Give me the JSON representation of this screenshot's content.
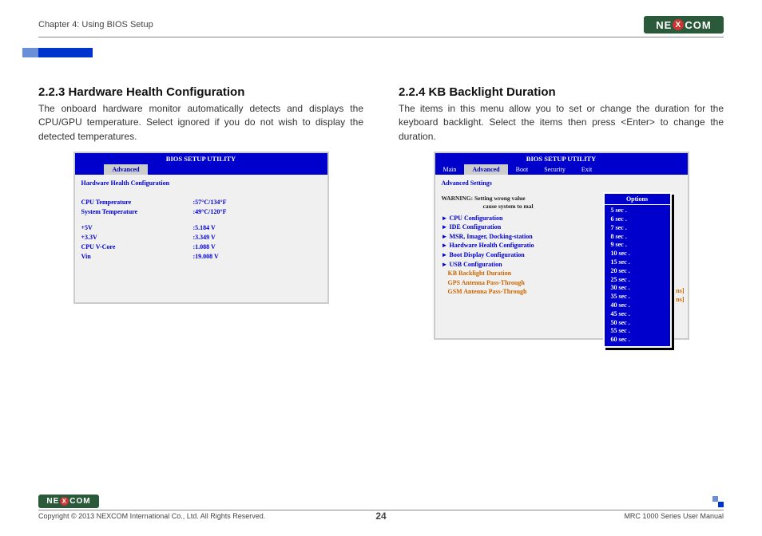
{
  "header": {
    "chapter": "Chapter 4: Using BIOS Setup"
  },
  "logo_text_parts": {
    "ne": "NE",
    "x": "X",
    "com": "COM"
  },
  "left": {
    "heading": "2.2.3 Hardware Health Configuration",
    "desc": "The onboard hardware monitor automatically detects and displays the CPU/GPU temperature. Select ignored if you do not wish to display the detected temperatures.",
    "bios": {
      "title": "BIOS SETUP UTILITY",
      "active_tab": "Advanced",
      "section_title": "Hardware Health Configuration",
      "rows1": [
        {
          "label": "CPU Temperature",
          "val": ":57°C/134°F"
        },
        {
          "label": "System Temperature",
          "val": ":49°C/120°F"
        }
      ],
      "rows2": [
        {
          "label": "+5V",
          "val": ":5.184 V"
        },
        {
          "label": "+3.3V",
          "val": ":3.349 V"
        },
        {
          "label": "CPU V-Core",
          "val": ":1.088 V"
        },
        {
          "label": "Vin",
          "val": ":19.008 V"
        }
      ]
    }
  },
  "right": {
    "heading": "2.2.4 KB Backlight Duration",
    "desc": "The items in this menu allow you to set or change the duration for the keyboard backlight. Select the items then press <Enter> to change the duration.",
    "bios": {
      "title": "BIOS SETUP UTILITY",
      "tabs": [
        "Main",
        "Advanced",
        "Boot",
        "Security",
        "Exit"
      ],
      "section_title": "Advanced Settings",
      "warn_l1": "WARNING:  Setting wrong value",
      "warn_l2": "cause system to mal",
      "items": [
        {
          "text": "CPU Configuration",
          "arrow": true
        },
        {
          "text": "IDE Configuration",
          "arrow": true
        },
        {
          "text": "MSR, Imager, Docking-station",
          "arrow": true
        },
        {
          "text": "Hardware Health Configuratio",
          "arrow": true
        },
        {
          "text": "Boot Display Configuration",
          "arrow": true
        },
        {
          "text": "USB Configuration",
          "arrow": true
        }
      ],
      "selected": "KB Backlight Duration",
      "extra": [
        "GPS Antenna Pass-Through",
        "GSM Antenna Pass-Through"
      ],
      "options_title": "Options",
      "options": [
        "5   sec .",
        "6   sec .",
        "7   sec .",
        "8   sec .",
        "9   sec .",
        "10 sec .",
        "15 sec .",
        "20 sec .",
        "25 sec .",
        "30 sec .",
        "35 sec .",
        "40 sec .",
        "45 sec .",
        "50 sec .",
        "55 sec .",
        "60 sec ."
      ],
      "hint1": "ns]",
      "hint2": "ns]"
    }
  },
  "footer": {
    "copyright": "Copyright © 2013 NEXCOM International Co., Ltd. All Rights Reserved.",
    "page": "24",
    "manual": "MRC 1000 Series User Manual"
  }
}
